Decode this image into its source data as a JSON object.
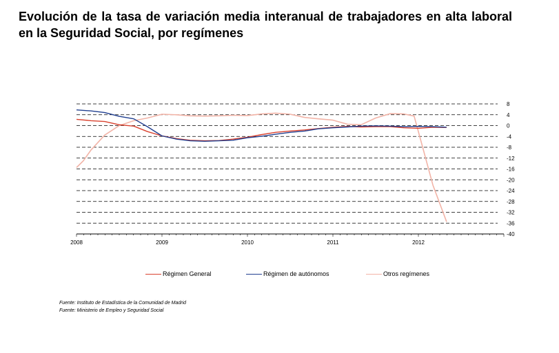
{
  "title": "Evolución de la tasa de variación media interanual de trabajadores en alta laboral en la Seguridad Social, por  regímenes",
  "sources": [
    "Fuente: Instituto de Estadística de la Comunidad de Madrid",
    "Fuente: Ministerio de Empleo y Seguridad Social"
  ],
  "chart_data": {
    "type": "line",
    "title": "Evolución de la tasa de variación media interanual de trabajadores en alta laboral en la Seguridad Social, por  regímenes",
    "xlabel": "",
    "ylabel": "",
    "xlim": [
      2008,
      2013
    ],
    "ylim": [
      -40,
      8
    ],
    "x_ticks": [
      "2008",
      "2009",
      "2010",
      "2011",
      "2012"
    ],
    "y_ticks": [
      8,
      4,
      0,
      -4,
      -8,
      -12,
      -16,
      -20,
      -24,
      -28,
      -32,
      -36,
      -40
    ],
    "grid": "horizontal dashed",
    "legend_position": "bottom",
    "series": [
      {
        "name": "Régimen General",
        "color": "#d9412e",
        "x": [
          2008.0,
          2008.17,
          2008.33,
          2008.5,
          2008.67,
          2008.83,
          2009.0,
          2009.17,
          2009.33,
          2009.5,
          2009.67,
          2009.83,
          2010.0,
          2010.17,
          2010.33,
          2010.5,
          2010.67,
          2010.83,
          2011.0,
          2011.17,
          2011.33,
          2011.5,
          2011.67,
          2011.83,
          2012.0,
          2012.17,
          2012.33
        ],
        "y": [
          2.3,
          1.8,
          1.5,
          0.3,
          -0.2,
          -2.2,
          -3.8,
          -4.8,
          -5.4,
          -5.6,
          -5.5,
          -5.0,
          -4.3,
          -3.3,
          -2.5,
          -2.0,
          -1.6,
          -1.1,
          -0.6,
          -0.3,
          -0.5,
          -0.4,
          -0.4,
          -0.8,
          -1.0,
          -0.6,
          -0.7
        ]
      },
      {
        "name": "Régimen de autónomos",
        "color": "#1f3e8f",
        "x": [
          2008.0,
          2008.17,
          2008.33,
          2008.5,
          2008.67,
          2008.83,
          2009.0,
          2009.17,
          2009.33,
          2009.5,
          2009.67,
          2009.83,
          2010.0,
          2010.17,
          2010.33,
          2010.5,
          2010.67,
          2010.83,
          2011.0,
          2011.17,
          2011.33,
          2011.5,
          2011.67,
          2011.83,
          2012.0,
          2012.17,
          2012.33
        ],
        "y": [
          5.8,
          5.4,
          4.8,
          3.4,
          2.5,
          -0.4,
          -3.8,
          -5.0,
          -5.6,
          -5.8,
          -5.6,
          -5.4,
          -4.5,
          -3.9,
          -3.2,
          -2.5,
          -2.0,
          -1.2,
          -0.8,
          -0.5,
          -0.2,
          -0.1,
          -0.2,
          -0.4,
          -0.3,
          -0.4,
          -0.6
        ]
      },
      {
        "name": "Otros regímenes",
        "color": "#f2b3a6",
        "x": [
          2008.0,
          2008.08,
          2008.17,
          2008.33,
          2008.5,
          2008.67,
          2008.83,
          2009.0,
          2009.17,
          2009.33,
          2009.5,
          2009.67,
          2009.83,
          2010.0,
          2010.17,
          2010.33,
          2010.5,
          2010.67,
          2010.83,
          2011.0,
          2011.17,
          2011.33,
          2011.5,
          2011.67,
          2011.83,
          2011.95,
          2012.05,
          2012.17,
          2012.33
        ],
        "y": [
          -15.5,
          -13.0,
          -9.0,
          -3.5,
          0.0,
          1.8,
          2.8,
          4.2,
          4.0,
          3.6,
          3.5,
          3.6,
          3.8,
          3.7,
          4.3,
          4.6,
          4.2,
          3.0,
          2.5,
          2.0,
          0.5,
          0.3,
          2.8,
          4.4,
          4.3,
          3.5,
          -8.0,
          -22.0,
          -35.5
        ]
      }
    ]
  }
}
